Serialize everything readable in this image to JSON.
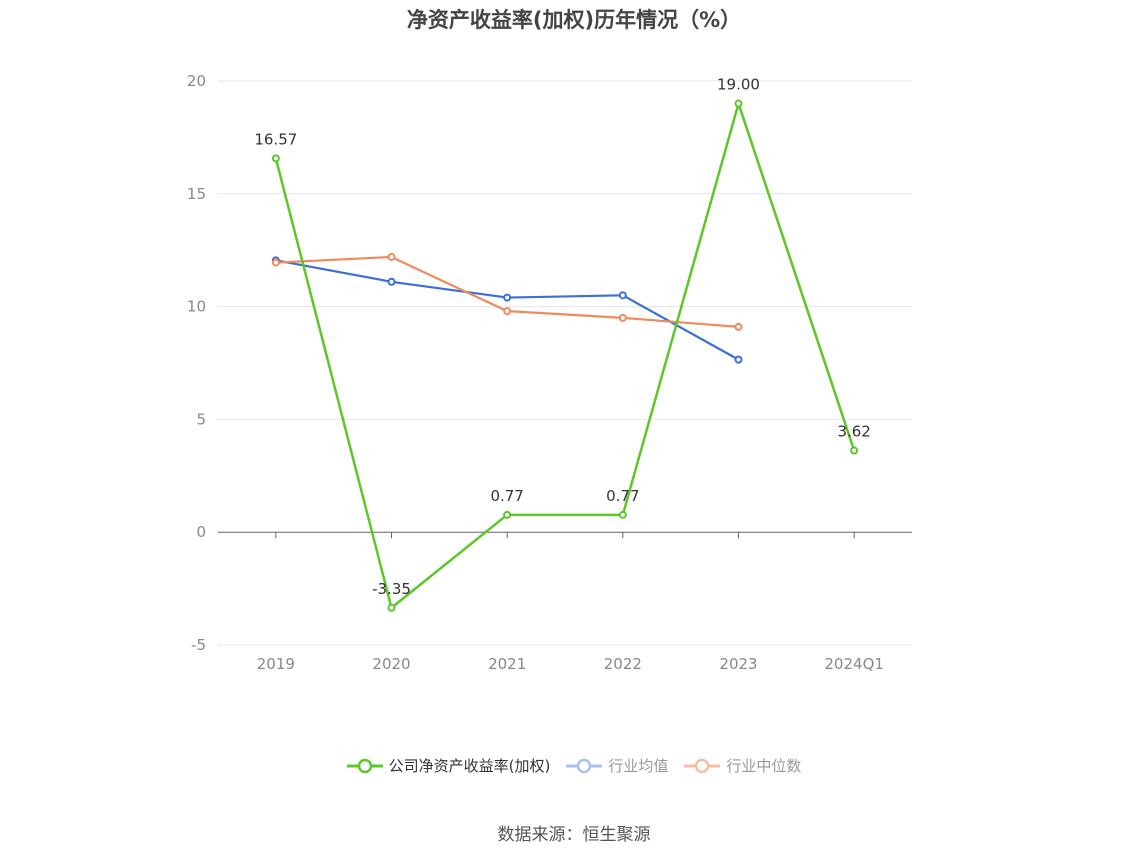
{
  "chart_data": {
    "type": "line",
    "title": "净资产收益率(加权)历年情况（%）",
    "categories": [
      "2019",
      "2020",
      "2021",
      "2022",
      "2023",
      "2024Q1"
    ],
    "y_ticks": [
      "20",
      "15",
      "10",
      "5",
      "0",
      "-5"
    ],
    "ylim": [
      -5,
      20
    ],
    "grid": true,
    "legend_position": "bottom",
    "series": [
      {
        "name": "公司净资产收益率(加权)",
        "values": [
          16.57,
          -3.35,
          0.77,
          0.77,
          19.0,
          3.62
        ],
        "labels": [
          "16.57",
          "-3.35",
          "0.77",
          "0.77",
          "19.00",
          "3.62"
        ],
        "color": "#5cc72a"
      },
      {
        "name": "行业均值",
        "values": [
          12.05,
          11.1,
          10.4,
          10.5,
          7.65,
          null
        ],
        "color": "#3a6fd8"
      },
      {
        "name": "行业中位数",
        "values": [
          11.95,
          12.2,
          9.8,
          9.5,
          9.1,
          null
        ],
        "color": "#f08a5d"
      }
    ]
  },
  "legend": {
    "items": [
      "公司净资产收益率(加权)",
      "行业均值",
      "行业中位数"
    ]
  },
  "source": "数据来源：恒生聚源"
}
